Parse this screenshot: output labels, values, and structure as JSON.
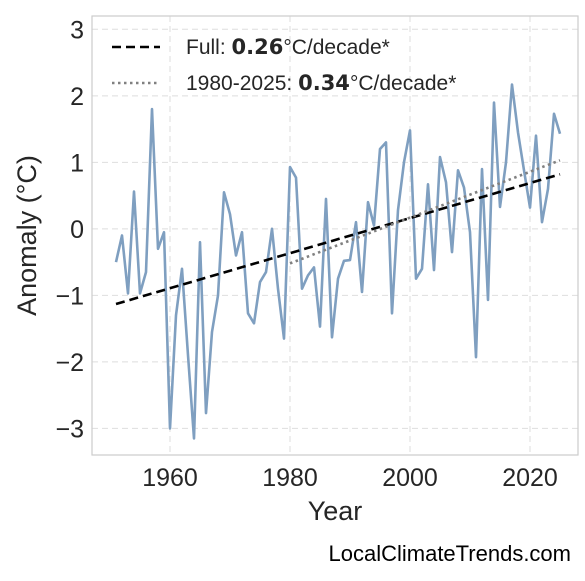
{
  "chart_data": {
    "type": "line",
    "xlabel": "Year",
    "ylabel": "Anomaly (°C)",
    "xlim": [
      1947,
      2028
    ],
    "ylim": [
      -3.4,
      3.2
    ],
    "xticks": [
      1960,
      1980,
      2000,
      2020
    ],
    "yticks": [
      3,
      2,
      1,
      0,
      -1,
      -2,
      -3
    ],
    "ytick_labels": [
      "3",
      "2",
      "1",
      "0",
      "−1",
      "−2",
      "−3"
    ],
    "grid": true,
    "legend_position": "top-left",
    "series": [
      {
        "type": "line",
        "color": "#7f9fc0",
        "x": [
          1951,
          1952,
          1953,
          1954,
          1955,
          1956,
          1957,
          1958,
          1959,
          1960,
          1961,
          1962,
          1963,
          1964,
          1965,
          1966,
          1967,
          1968,
          1969,
          1970,
          1971,
          1972,
          1973,
          1974,
          1975,
          1976,
          1977,
          1978,
          1979,
          1980,
          1981,
          1982,
          1983,
          1984,
          1985,
          1986,
          1987,
          1988,
          1989,
          1990,
          1991,
          1992,
          1993,
          1994,
          1995,
          1996,
          1997,
          1998,
          1999,
          2000,
          2001,
          2002,
          2003,
          2004,
          2005,
          2006,
          2007,
          2008,
          2009,
          2010,
          2011,
          2012,
          2013,
          2014,
          2015,
          2016,
          2017,
          2018,
          2019,
          2020,
          2021,
          2022,
          2023,
          2024,
          2025
        ],
        "y": [
          -0.5,
          -0.1,
          -0.97,
          0.56,
          -0.97,
          -0.65,
          1.8,
          -0.3,
          -0.05,
          -3.0,
          -1.3,
          -0.6,
          -1.9,
          -3.15,
          -0.2,
          -2.77,
          -1.55,
          -1.0,
          0.55,
          0.22,
          -0.4,
          -0.05,
          -1.27,
          -1.42,
          -0.8,
          -0.65,
          0.0,
          -0.9,
          -1.65,
          0.93,
          0.77,
          -0.9,
          -0.7,
          -0.58,
          -1.47,
          0.45,
          -1.63,
          -0.75,
          -0.48,
          -0.47,
          0.1,
          -0.95,
          0.4,
          0.05,
          1.2,
          1.3,
          -1.27,
          0.28,
          1.0,
          1.48,
          -0.75,
          -0.6,
          0.67,
          -0.62,
          1.08,
          0.7,
          -0.35,
          0.88,
          0.62,
          -0.05,
          -1.93,
          0.9,
          -1.07,
          1.9,
          0.33,
          1.0,
          2.17,
          1.45,
          0.88,
          0.32,
          1.4,
          0.1,
          0.6,
          1.73,
          1.43
        ]
      },
      {
        "type": "line",
        "style": "dashed",
        "color": "#000000",
        "x": [
          1951,
          2025
        ],
        "y": [
          -1.13,
          0.82
        ]
      },
      {
        "type": "line",
        "style": "dotted",
        "color": "#808080",
        "x": [
          1980,
          2025
        ],
        "y": [
          -0.52,
          1.03
        ]
      }
    ],
    "legend": [
      {
        "text_prefix": "Full: ",
        "value": "0.26",
        "text_suffix": "°C/decade*",
        "style": "dashed",
        "color": "#000000"
      },
      {
        "text_prefix": "1980-2025: ",
        "value": "0.34",
        "text_suffix": "°C/decade*",
        "style": "dotted",
        "color": "#808080"
      }
    ]
  },
  "source": "LocalClimateTrends.com"
}
